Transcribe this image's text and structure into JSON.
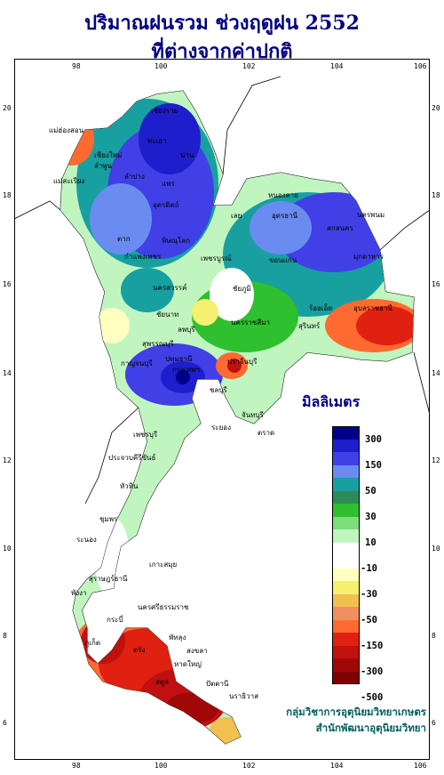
{
  "title": {
    "line1": "ปริมาณฝนรวม ช่วงฤดูฝน 2552",
    "line2": "ที่ต่างจากค่าปกติ"
  },
  "axes": {
    "lon_ticks": [
      "98",
      "100",
      "102",
      "104",
      "106"
    ],
    "lat_ticks": [
      "20",
      "18",
      "16",
      "14",
      "12",
      "10",
      "8",
      "6"
    ]
  },
  "legend": {
    "title": "มิลลิเมตร",
    "labels": [
      "300",
      "150",
      "50",
      "30",
      "10",
      "-10",
      "-30",
      "-50",
      "-150",
      "-300",
      "-500"
    ],
    "colors": [
      "#00008b",
      "#1e1ecc",
      "#4040e6",
      "#6a8cf0",
      "#18a0a0",
      "#2e8b57",
      "#2ec02e",
      "#7cde7c",
      "#c0f5c0",
      "#ffffff",
      "#ffffff",
      "#ffffc0",
      "#f5f070",
      "#f0c050",
      "#f09060",
      "#ff6a30",
      "#e02010",
      "#c01010",
      "#a00808",
      "#800000"
    ]
  },
  "credits": {
    "line1": "กลุ่มวิชาการอุตุนิยมวิทยาเกษตร",
    "line2": "สำนักพัฒนาอุตุนิยมวิทยา"
  },
  "places": [
    "เชียงราย",
    "แม่ฮ่องสอน",
    "เชียงใหม่",
    "ลำพูน",
    "พะเยา",
    "น่าน",
    "แพร่",
    "ลำปาง",
    "แม่สะเรียง",
    "อุตรดิตถ์",
    "ตาก",
    "พิษณุโลก",
    "หนองคาย",
    "อุดรธานี",
    "นครพนม",
    "สกลนคร",
    "เลย",
    "กำแพงเพชร",
    "เพชรบูรณ์",
    "ขอนแก่น",
    "มุกดาหาร",
    "นครสวรรค์",
    "ชัยนาท",
    "ชัยภูมิ",
    "ร้อยเอ็ด",
    "อุบลราชธานี",
    "สุรินทร์",
    "นครราชสีมา",
    "ลพบุรี",
    "สุพรรณบุรี",
    "กาญจนบุรี",
    "ปทุมธานี",
    "กรุงเทพฯ",
    "ปราจีนบุรี",
    "ชลบุรี",
    "จันทบุรี",
    "ระยอง",
    "ตราด",
    "ประจวบคีรีขันธ์",
    "ชุมพร",
    "ระนอง",
    "เกาะสมุย",
    "สุราษฎร์ธานี",
    "นครศรีธรรมราช",
    "ภูเก็ต",
    "กระบี่",
    "ตรัง",
    "สงขลา",
    "หาดใหญ่",
    "สตูล",
    "ปัตตานี",
    "นราธิวาส",
    "พัทลุง",
    "เพชรบุรี",
    "หัวหิน",
    "พังงา"
  ]
}
